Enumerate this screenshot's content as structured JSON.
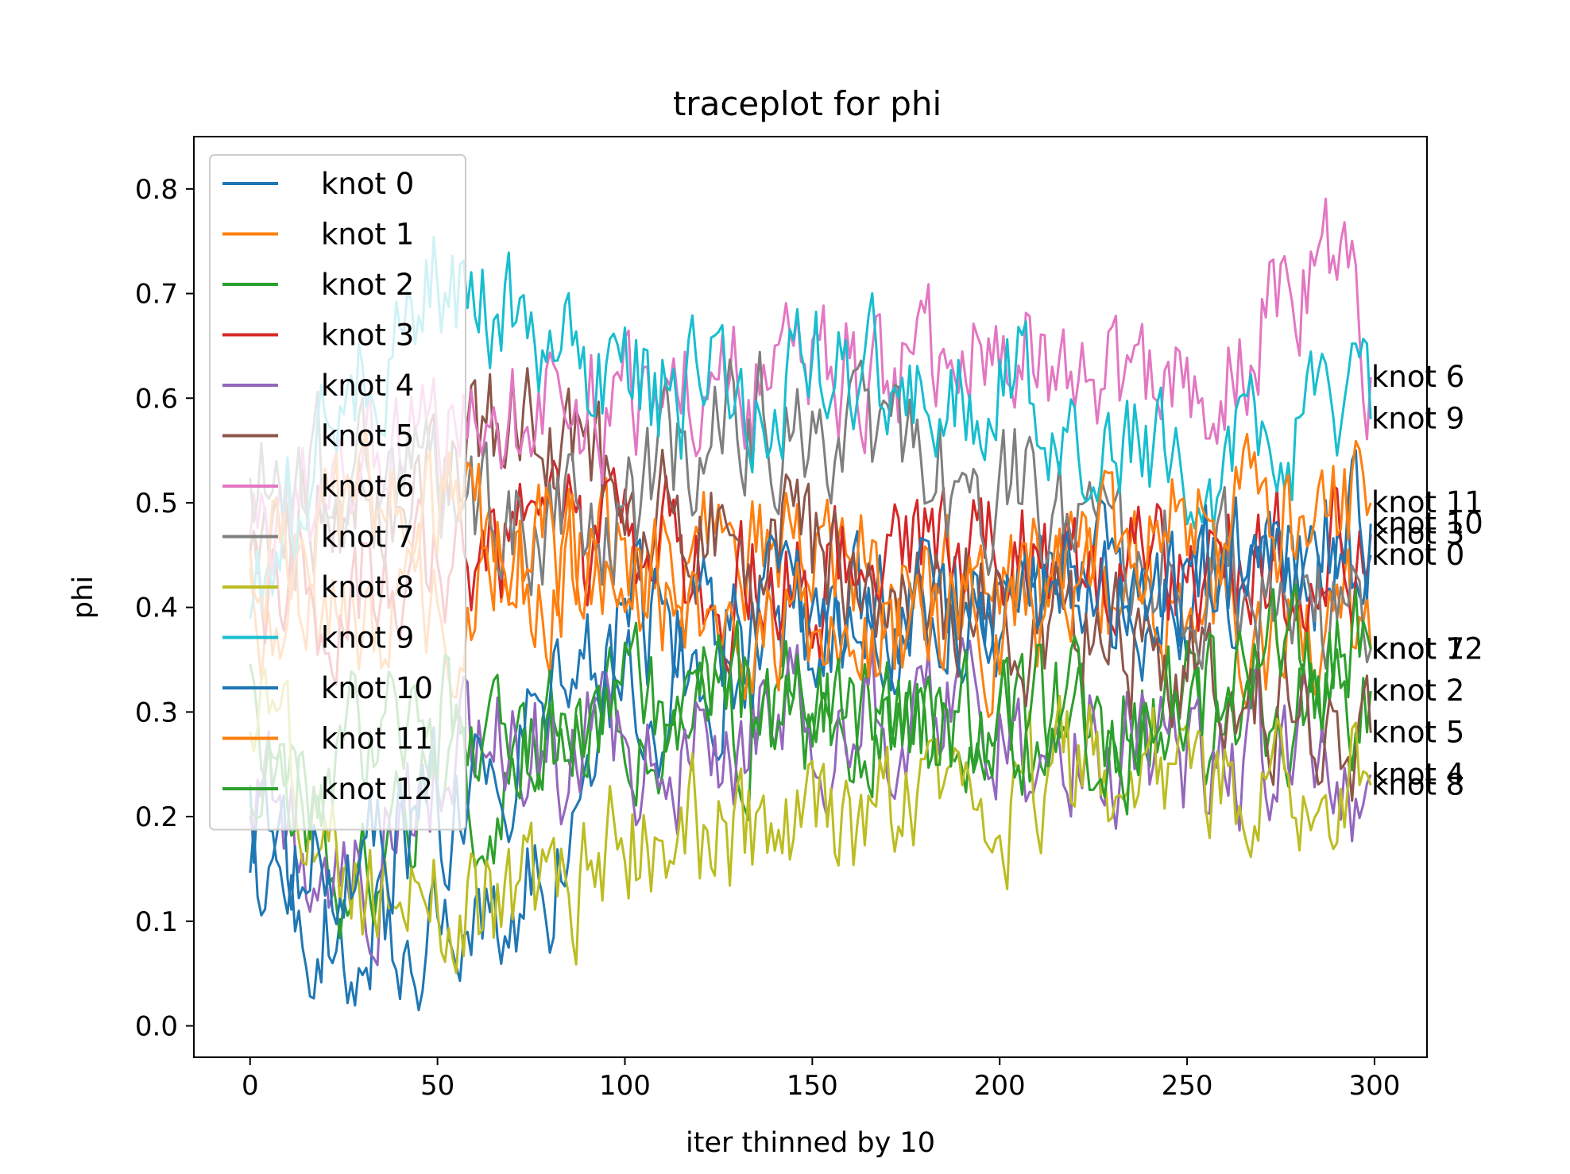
{
  "chart_data": {
    "type": "line",
    "title": "traceplot for phi",
    "xlabel": "iter thinned by 10",
    "ylabel": "phi",
    "xlim": [
      -15,
      314
    ],
    "ylim": [
      -0.03,
      0.85
    ],
    "xticks": [
      0,
      50,
      100,
      150,
      200,
      250,
      300
    ],
    "xtick_labels": [
      "0",
      "50",
      "100",
      "150",
      "200",
      "250",
      "300"
    ],
    "yticks": [
      0.0,
      0.1,
      0.2,
      0.3,
      0.4,
      0.5,
      0.6,
      0.7,
      0.8
    ],
    "ytick_labels": [
      "0.0",
      "0.1",
      "0.2",
      "0.3",
      "0.4",
      "0.5",
      "0.6",
      "0.7",
      "0.8"
    ],
    "grid": false,
    "legend_position": "top-left",
    "n_iterations": 300,
    "series": [
      {
        "name": "knot 0",
        "color": "#1f77b4",
        "end_label": "knot 0",
        "anchors": [
          [
            0,
            0.2
          ],
          [
            10,
            0.1
          ],
          [
            50,
            0.09
          ],
          [
            80,
            0.14
          ],
          [
            100,
            0.3
          ],
          [
            150,
            0.38
          ],
          [
            200,
            0.4
          ],
          [
            250,
            0.42
          ],
          [
            300,
            0.45
          ]
        ],
        "end_value": 0.45
      },
      {
        "name": "knot 1",
        "color": "#ff7f0e",
        "end_label": "knot 1",
        "anchors": [
          [
            0,
            0.4
          ],
          [
            50,
            0.4
          ],
          [
            100,
            0.45
          ],
          [
            150,
            0.44
          ],
          [
            200,
            0.42
          ],
          [
            250,
            0.4
          ],
          [
            300,
            0.36
          ]
        ],
        "end_value": 0.36
      },
      {
        "name": "knot 2",
        "color": "#2ca02c",
        "end_label": "knot 2",
        "anchors": [
          [
            0,
            0.3
          ],
          [
            20,
            0.15
          ],
          [
            50,
            0.22
          ],
          [
            100,
            0.28
          ],
          [
            150,
            0.3
          ],
          [
            200,
            0.28
          ],
          [
            250,
            0.3
          ],
          [
            300,
            0.32
          ]
        ],
        "end_value": 0.32
      },
      {
        "name": "knot 3",
        "color": "#d62728",
        "end_label": "knot 3",
        "anchors": [
          [
            0,
            0.4
          ],
          [
            50,
            0.45
          ],
          [
            100,
            0.45
          ],
          [
            150,
            0.42
          ],
          [
            200,
            0.45
          ],
          [
            250,
            0.43
          ],
          [
            300,
            0.47
          ]
        ],
        "end_value": 0.47
      },
      {
        "name": "knot 4",
        "color": "#9467bd",
        "end_label": "knot 4",
        "anchors": [
          [
            0,
            0.25
          ],
          [
            20,
            0.1
          ],
          [
            60,
            0.28
          ],
          [
            100,
            0.25
          ],
          [
            150,
            0.3
          ],
          [
            200,
            0.28
          ],
          [
            250,
            0.25
          ],
          [
            300,
            0.24
          ]
        ],
        "end_value": 0.24
      },
      {
        "name": "knot 5",
        "color": "#8c564b",
        "end_label": "knot 5",
        "anchors": [
          [
            0,
            0.5
          ],
          [
            50,
            0.5
          ],
          [
            70,
            0.58
          ],
          [
            100,
            0.5
          ],
          [
            150,
            0.45
          ],
          [
            200,
            0.4
          ],
          [
            250,
            0.35
          ],
          [
            300,
            0.28
          ]
        ],
        "end_value": 0.28
      },
      {
        "name": "knot 6",
        "color": "#e377c2",
        "end_label": "knot 6",
        "anchors": [
          [
            0,
            0.5
          ],
          [
            50,
            0.55
          ],
          [
            100,
            0.6
          ],
          [
            150,
            0.62
          ],
          [
            200,
            0.65
          ],
          [
            250,
            0.6
          ],
          [
            285,
            0.75
          ],
          [
            300,
            0.62
          ]
        ],
        "end_value": 0.62
      },
      {
        "name": "knot 7",
        "color": "#7f7f7f",
        "end_label": "knot 7",
        "anchors": [
          [
            0,
            0.55
          ],
          [
            50,
            0.5
          ],
          [
            100,
            0.48
          ],
          [
            130,
            0.6
          ],
          [
            150,
            0.55
          ],
          [
            200,
            0.52
          ],
          [
            250,
            0.45
          ],
          [
            300,
            0.36
          ]
        ],
        "end_value": 0.36
      },
      {
        "name": "knot 8",
        "color": "#bcbd22",
        "end_label": "knot 8",
        "anchors": [
          [
            0,
            0.3
          ],
          [
            30,
            0.12
          ],
          [
            80,
            0.12
          ],
          [
            100,
            0.18
          ],
          [
            150,
            0.18
          ],
          [
            200,
            0.22
          ],
          [
            250,
            0.24
          ],
          [
            300,
            0.23
          ]
        ],
        "end_value": 0.23
      },
      {
        "name": "knot 9",
        "color": "#17becf",
        "end_label": "knot 9",
        "anchors": [
          [
            0,
            0.4
          ],
          [
            40,
            0.7
          ],
          [
            50,
            0.72
          ],
          [
            100,
            0.6
          ],
          [
            150,
            0.62
          ],
          [
            200,
            0.62
          ],
          [
            250,
            0.52
          ],
          [
            300,
            0.58
          ]
        ],
        "end_value": 0.58
      },
      {
        "name": "knot 10",
        "color": "#1f77b4",
        "end_label": "knot 10",
        "anchors": [
          [
            0,
            0.15
          ],
          [
            50,
            0.2
          ],
          [
            100,
            0.38
          ],
          [
            150,
            0.38
          ],
          [
            200,
            0.4
          ],
          [
            250,
            0.42
          ],
          [
            300,
            0.48
          ]
        ],
        "end_value": 0.48
      },
      {
        "name": "knot 11",
        "color": "#ff7f0e",
        "end_label": "knot 11",
        "anchors": [
          [
            0,
            0.45
          ],
          [
            50,
            0.5
          ],
          [
            100,
            0.42
          ],
          [
            150,
            0.38
          ],
          [
            200,
            0.38
          ],
          [
            250,
            0.48
          ],
          [
            300,
            0.5
          ]
        ],
        "end_value": 0.5
      },
      {
        "name": "knot 12",
        "color": "#2ca02c",
        "end_label": "knot 12",
        "anchors": [
          [
            0,
            0.2
          ],
          [
            50,
            0.3
          ],
          [
            100,
            0.3
          ],
          [
            150,
            0.3
          ],
          [
            200,
            0.3
          ],
          [
            250,
            0.3
          ],
          [
            300,
            0.36
          ]
        ],
        "end_value": 0.36
      }
    ]
  }
}
